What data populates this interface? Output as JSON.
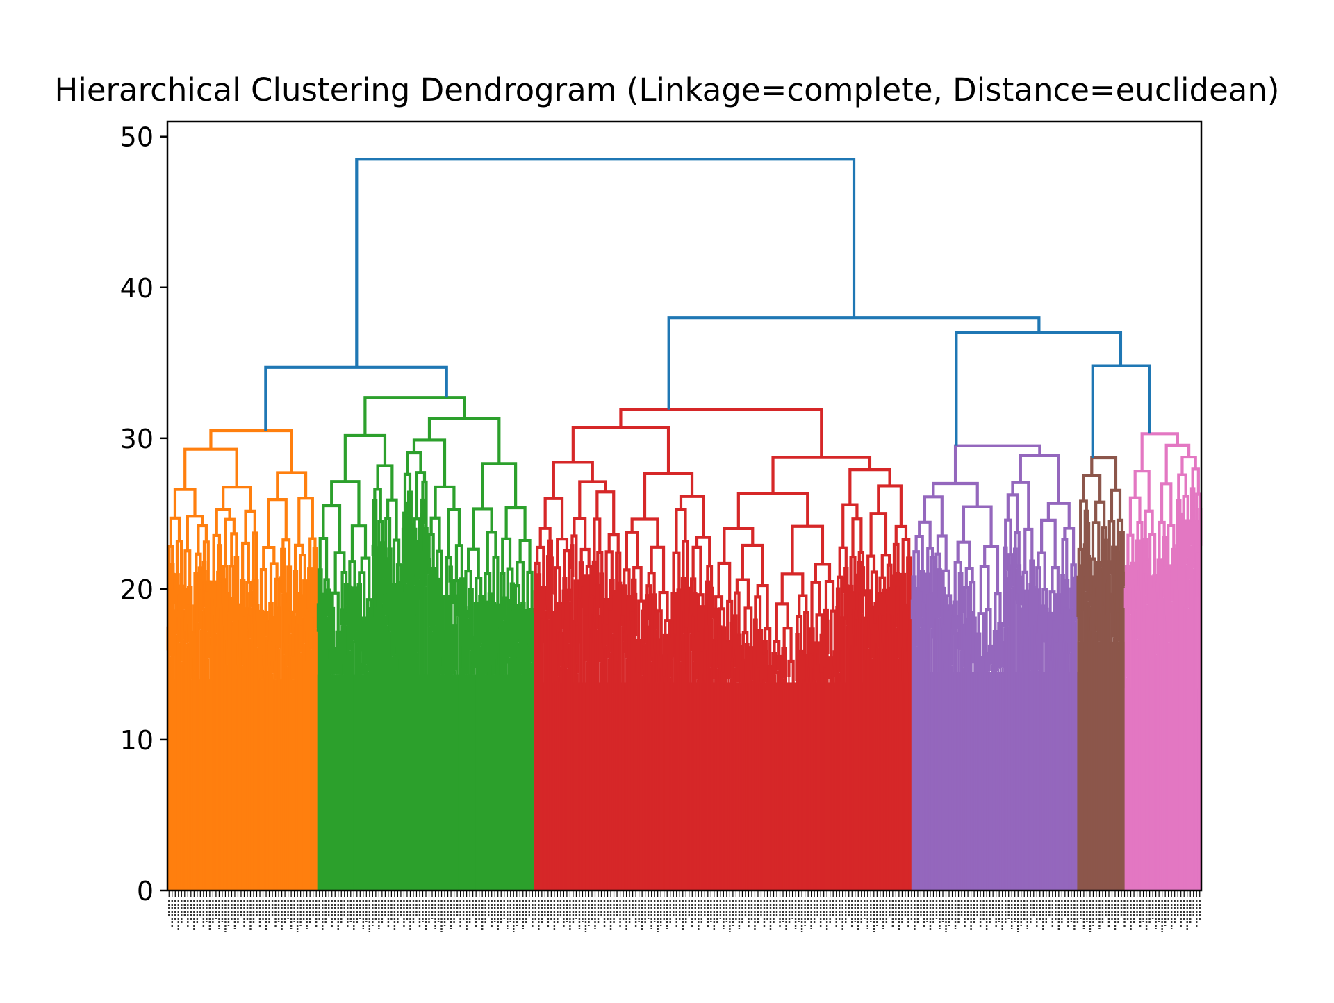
{
  "chart_data": {
    "type": "dendrogram",
    "title": "Hierarchical Clustering Dendrogram (Linkage=complete, Distance=euclidean)",
    "xlabel": "",
    "ylabel": "",
    "ylim": [
      0,
      51
    ],
    "yticks": [
      0,
      10,
      20,
      30,
      40,
      50
    ],
    "colors": {
      "above_threshold": "#1f77b4",
      "orange": "#ff7f0e",
      "green": "#2ca02c",
      "red": "#d62728",
      "purple": "#9467bd",
      "brown": "#8c564b",
      "pink": "#e377c2"
    },
    "top_links": [
      {
        "left_x": 0.183,
        "right_x": 0.664,
        "height": 48.5,
        "left_child_height": 34.7,
        "right_child_height": 38.0
      },
      {
        "left_x": 0.095,
        "right_x": 0.27,
        "height": 34.7,
        "left_child_height": 30.5,
        "right_child_height": 32.7
      },
      {
        "left_x": 0.485,
        "right_x": 0.843,
        "height": 38.0,
        "left_child_height": 31.9,
        "right_child_height": 37.0
      },
      {
        "left_x": 0.763,
        "right_x": 0.922,
        "height": 37.0,
        "left_child_height": 29.5,
        "right_child_height": 34.8
      },
      {
        "left_x": 0.895,
        "right_x": 0.95,
        "height": 34.8,
        "left_child_height": 28.7,
        "right_child_height": 30.3
      }
    ],
    "clusters": [
      {
        "color": "orange",
        "x_start": 0.0,
        "x_end": 0.145,
        "top_height": 30.5,
        "sub_heights": [
          28.1,
          26.1,
          25.0,
          23.3,
          22.5,
          22.2,
          20.7,
          19.9,
          18.9,
          17.4
        ],
        "leaf_floor": 14.0
      },
      {
        "color": "green",
        "x_start": 0.145,
        "x_end": 0.355,
        "top_height": 32.7,
        "sub_heights": [
          30.1,
          30.0,
          27.5,
          26.7,
          26.4,
          25.2,
          24.7,
          23.5,
          23.2,
          21.4,
          20.6,
          19.0
        ],
        "leaf_floor": 14.3
      },
      {
        "color": "red",
        "x_start": 0.355,
        "x_end": 0.72,
        "top_height": 31.9,
        "sub_heights": [
          30.8,
          29.0,
          28.8,
          27.5,
          27.1,
          26.6,
          26.2,
          25.4,
          25.3,
          24.5,
          24.2,
          23.8,
          23.5,
          23.3,
          22.9,
          21.4,
          20.8,
          20.0
        ],
        "leaf_floor": 13.8
      },
      {
        "color": "purple",
        "x_start": 0.72,
        "x_end": 0.88,
        "top_height": 29.5,
        "sub_heights": [
          28.7,
          27.1,
          25.4,
          24.5,
          23.9,
          22.4,
          21.1,
          19.7,
          18.9
        ],
        "leaf_floor": 14.5
      },
      {
        "color": "brown",
        "x_start": 0.88,
        "x_end": 0.926,
        "top_height": 28.7,
        "sub_heights": [
          26.7,
          25.0,
          23.2,
          22.0,
          20.6
        ],
        "leaf_floor": 16.5
      },
      {
        "color": "pink",
        "x_start": 0.926,
        "x_end": 1.0,
        "top_height": 30.3,
        "sub_heights": [
          29.3,
          25.6,
          24.1,
          23.0,
          20.9,
          19.6
        ],
        "leaf_floor": 13.4
      }
    ]
  }
}
